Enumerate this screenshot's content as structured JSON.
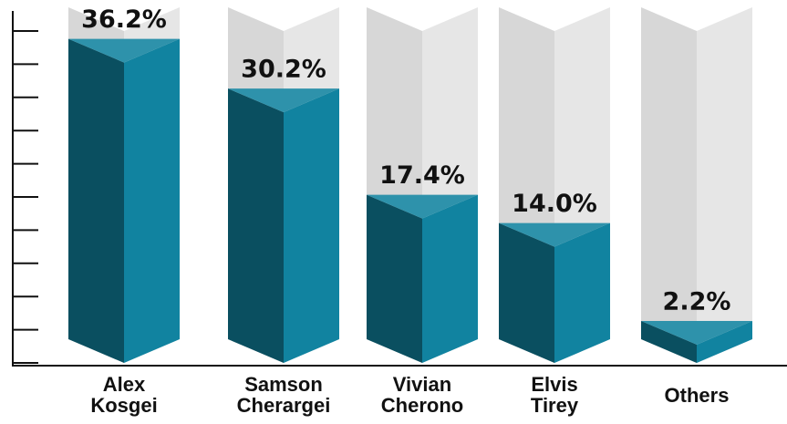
{
  "chart_data": {
    "type": "bar3d",
    "categories": [
      "Alex Kosgei",
      "Samson Cherargei",
      "Vivian Cherono",
      "Elvis Tirey",
      "Others"
    ],
    "values": [
      36.2,
      30.2,
      17.4,
      14.0,
      2.2
    ],
    "value_labels": [
      "36.2%",
      "30.2%",
      "17.4%",
      "14.0%",
      "2.2%"
    ],
    "color": "#1183a0",
    "ylim": [
      0,
      40
    ],
    "yticks": [
      0,
      4,
      8,
      12,
      16,
      20,
      24,
      28,
      32,
      36,
      40
    ]
  }
}
